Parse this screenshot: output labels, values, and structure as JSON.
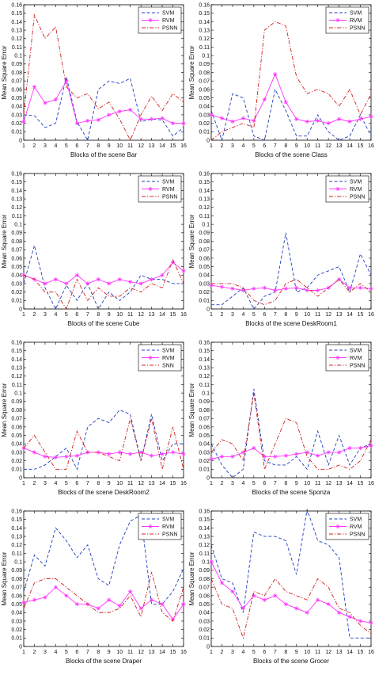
{
  "figure": {
    "panel_order": [
      "bar",
      "class",
      "cube",
      "deskroom1",
      "deskroom2",
      "sponza",
      "draper",
      "grocer"
    ]
  },
  "style": {
    "series_colors": {
      "SVM": "#1f3fbf",
      "RVM": "#ff33ff",
      "PSNN": "#d11f1f",
      "SNN": "#d11f1f"
    },
    "series_dash": {
      "SVM": "dashed",
      "RVM": "solid-with-star-markers",
      "PSNN": "dash-dot",
      "SNN": "dash-dot"
    }
  },
  "chart_data": [
    {
      "id": "bar",
      "type": "line",
      "xlabel": "Blocks of the scene Bar",
      "ylabel": "Mean Square Error",
      "x": [
        1,
        2,
        3,
        4,
        5,
        6,
        7,
        8,
        9,
        10,
        11,
        12,
        13,
        14,
        15,
        16
      ],
      "xlim": [
        1,
        16
      ],
      "ylim": [
        0,
        0.16
      ],
      "yticks": [
        0,
        0.01,
        0.02,
        0.03,
        0.04,
        0.05,
        0.06,
        0.07,
        0.08,
        0.09,
        0.1,
        0.11,
        0.12,
        0.13,
        0.14,
        0.15,
        0.16
      ],
      "legend": "top-right",
      "grid": false,
      "series": [
        {
          "name": "SVM",
          "values": [
            0.03,
            0.029,
            0.015,
            0.02,
            0.075,
            0.022,
            0.0,
            0.06,
            0.07,
            0.067,
            0.073,
            0.022,
            0.025,
            0.024,
            0.005,
            0.015
          ]
        },
        {
          "name": "RVM",
          "values": [
            0.022,
            0.063,
            0.044,
            0.048,
            0.07,
            0.02,
            0.023,
            0.024,
            0.03,
            0.034,
            0.036,
            0.025,
            0.025,
            0.026,
            0.02,
            0.02
          ]
        },
        {
          "name": "PSNN",
          "values": [
            0.03,
            0.148,
            0.12,
            0.134,
            0.063,
            0.05,
            0.055,
            0.037,
            0.045,
            0.025,
            0.0,
            0.03,
            0.052,
            0.035,
            0.055,
            0.045
          ]
        }
      ]
    },
    {
      "id": "class",
      "type": "line",
      "xlabel": "Blocks of the scene Class",
      "ylabel": "Mean Square Error",
      "x": [
        1,
        2,
        3,
        4,
        5,
        6,
        7,
        8,
        9,
        10,
        11,
        12,
        13,
        14,
        15,
        16
      ],
      "xlim": [
        1,
        16
      ],
      "ylim": [
        0,
        0.16
      ],
      "yticks": [
        0,
        0.01,
        0.02,
        0.03,
        0.04,
        0.05,
        0.06,
        0.07,
        0.08,
        0.09,
        0.1,
        0.11,
        0.12,
        0.13,
        0.14,
        0.15,
        0.16
      ],
      "legend": "top-right",
      "grid": false,
      "series": [
        {
          "name": "SVM",
          "values": [
            0.035,
            0.0,
            0.055,
            0.05,
            0.005,
            0.0,
            0.06,
            0.035,
            0.005,
            0.005,
            0.03,
            0.01,
            0.0,
            0.005,
            0.03,
            0.005
          ]
        },
        {
          "name": "RVM",
          "values": [
            0.03,
            0.026,
            0.022,
            0.026,
            0.023,
            0.048,
            0.078,
            0.045,
            0.025,
            0.022,
            0.023,
            0.02,
            0.025,
            0.022,
            0.025,
            0.028
          ]
        },
        {
          "name": "PSNN",
          "values": [
            0.0,
            0.01,
            0.015,
            0.02,
            0.015,
            0.13,
            0.14,
            0.135,
            0.075,
            0.055,
            0.06,
            0.055,
            0.04,
            0.06,
            0.03,
            0.055
          ]
        }
      ]
    },
    {
      "id": "cube",
      "type": "line",
      "xlabel": "Blocks of the scene Cube",
      "ylabel": "Mean Square Error",
      "x": [
        1,
        2,
        3,
        4,
        5,
        6,
        7,
        8,
        9,
        10,
        11,
        12,
        13,
        14,
        15,
        16
      ],
      "xlim": [
        1,
        16
      ],
      "ylim": [
        0,
        0.16
      ],
      "yticks": [
        0,
        0.01,
        0.02,
        0.03,
        0.04,
        0.05,
        0.06,
        0.07,
        0.08,
        0.09,
        0.1,
        0.11,
        0.12,
        0.13,
        0.14,
        0.15,
        0.16
      ],
      "legend": "top-right",
      "grid": false,
      "series": [
        {
          "name": "SVM",
          "values": [
            0.03,
            0.075,
            0.025,
            0.0,
            0.028,
            0.01,
            0.03,
            0.0,
            0.02,
            0.01,
            0.02,
            0.04,
            0.035,
            0.035,
            0.03,
            0.03
          ]
        },
        {
          "name": "RVM",
          "values": [
            0.04,
            0.035,
            0.03,
            0.035,
            0.03,
            0.04,
            0.03,
            0.035,
            0.03,
            0.035,
            0.032,
            0.03,
            0.035,
            0.04,
            0.055,
            0.045
          ]
        },
        {
          "name": "PSNN",
          "values": [
            0.04,
            0.035,
            0.02,
            0.02,
            0.0,
            0.035,
            0.01,
            0.025,
            0.015,
            0.015,
            0.025,
            0.02,
            0.03,
            0.025,
            0.058,
            0.03
          ]
        }
      ]
    },
    {
      "id": "deskroom1",
      "type": "line",
      "xlabel": "Blocks of the scene DeskRoom1",
      "ylabel": "Mean Square Error",
      "x": [
        1,
        2,
        3,
        4,
        5,
        6,
        7,
        8,
        9,
        10,
        11,
        12,
        13,
        14,
        15,
        16
      ],
      "xlim": [
        1,
        16
      ],
      "ylim": [
        0,
        0.16
      ],
      "yticks": [
        0,
        0.01,
        0.02,
        0.03,
        0.04,
        0.05,
        0.06,
        0.07,
        0.08,
        0.09,
        0.1,
        0.11,
        0.12,
        0.13,
        0.14,
        0.15,
        0.16
      ],
      "legend": "top-right",
      "grid": false,
      "series": [
        {
          "name": "SVM",
          "values": [
            0.005,
            0.005,
            0.015,
            0.025,
            0.0,
            0.015,
            0.02,
            0.09,
            0.02,
            0.025,
            0.04,
            0.045,
            0.05,
            0.02,
            0.065,
            0.04
          ]
        },
        {
          "name": "RVM",
          "values": [
            0.028,
            0.026,
            0.024,
            0.022,
            0.024,
            0.025,
            0.022,
            0.024,
            0.025,
            0.022,
            0.022,
            0.025,
            0.035,
            0.025,
            0.025,
            0.024
          ]
        },
        {
          "name": "PSNN",
          "values": [
            0.03,
            0.03,
            0.03,
            0.025,
            0.01,
            0.005,
            0.01,
            0.03,
            0.035,
            0.025,
            0.015,
            0.025,
            0.035,
            0.02,
            0.03,
            0.02
          ]
        }
      ]
    },
    {
      "id": "deskroom2",
      "type": "line",
      "xlabel": "Blocks of the scene DeskRoom2",
      "ylabel": "Mean Square Error",
      "x": [
        1,
        2,
        3,
        4,
        5,
        6,
        7,
        8,
        9,
        10,
        11,
        12,
        13,
        14,
        15,
        16
      ],
      "xlim": [
        1,
        16
      ],
      "ylim": [
        0,
        0.16
      ],
      "yticks": [
        0,
        0.01,
        0.02,
        0.03,
        0.04,
        0.05,
        0.06,
        0.07,
        0.08,
        0.09,
        0.1,
        0.11,
        0.12,
        0.13,
        0.14,
        0.15,
        0.16
      ],
      "legend": "top-right",
      "grid": false,
      "series": [
        {
          "name": "SVM",
          "values": [
            0.01,
            0.01,
            0.015,
            0.025,
            0.035,
            0.01,
            0.06,
            0.07,
            0.065,
            0.08,
            0.075,
            0.02,
            0.075,
            0.02,
            0.04,
            0.04
          ]
        },
        {
          "name": "RVM",
          "values": [
            0.035,
            0.03,
            0.025,
            0.024,
            0.025,
            0.026,
            0.03,
            0.03,
            0.028,
            0.03,
            0.028,
            0.03,
            0.026,
            0.028,
            0.03,
            0.028
          ]
        },
        {
          "name": "SNN",
          "values": [
            0.035,
            0.05,
            0.03,
            0.01,
            0.01,
            0.055,
            0.03,
            0.03,
            0.025,
            0.02,
            0.07,
            0.02,
            0.07,
            0.01,
            0.06,
            0.01
          ]
        }
      ]
    },
    {
      "id": "sponza",
      "type": "line",
      "xlabel": "Blocks of the scene Sponza",
      "ylabel": "Mean Square Error",
      "x": [
        1,
        2,
        3,
        4,
        5,
        6,
        7,
        8,
        9,
        10,
        11,
        12,
        13,
        14,
        15,
        16
      ],
      "xlim": [
        1,
        16
      ],
      "ylim": [
        0,
        0.16
      ],
      "yticks": [
        0,
        0.01,
        0.02,
        0.03,
        0.04,
        0.05,
        0.06,
        0.07,
        0.08,
        0.09,
        0.1,
        0.11,
        0.12,
        0.13,
        0.14,
        0.15,
        0.16
      ],
      "legend": "top-right",
      "grid": false,
      "series": [
        {
          "name": "SVM",
          "values": [
            0.04,
            0.015,
            0.0,
            0.01,
            0.105,
            0.02,
            0.015,
            0.015,
            0.025,
            0.01,
            0.055,
            0.015,
            0.05,
            0.015,
            0.035,
            0.04
          ]
        },
        {
          "name": "RVM",
          "values": [
            0.022,
            0.025,
            0.025,
            0.03,
            0.035,
            0.025,
            0.025,
            0.026,
            0.028,
            0.03,
            0.026,
            0.03,
            0.03,
            0.035,
            0.035,
            0.038
          ]
        },
        {
          "name": "PSNN",
          "values": [
            0.03,
            0.045,
            0.04,
            0.02,
            0.1,
            0.01,
            0.04,
            0.07,
            0.065,
            0.025,
            0.01,
            0.01,
            0.015,
            0.01,
            0.02,
            0.045
          ]
        }
      ]
    },
    {
      "id": "draper",
      "type": "line",
      "xlabel": "Blocks of the scene Draper",
      "ylabel": "Mean Square Error",
      "x": [
        1,
        2,
        3,
        4,
        5,
        6,
        7,
        8,
        9,
        10,
        11,
        12,
        13,
        14,
        15,
        16
      ],
      "xlim": [
        1,
        16
      ],
      "ylim": [
        0,
        0.16
      ],
      "yticks": [
        0,
        0.01,
        0.02,
        0.03,
        0.04,
        0.05,
        0.06,
        0.07,
        0.08,
        0.09,
        0.1,
        0.11,
        0.12,
        0.13,
        0.14,
        0.15,
        0.16
      ],
      "legend": "top-right",
      "grid": false,
      "series": [
        {
          "name": "SVM",
          "values": [
            0.065,
            0.108,
            0.095,
            0.14,
            0.125,
            0.105,
            0.12,
            0.08,
            0.072,
            0.12,
            0.148,
            0.155,
            0.05,
            0.05,
            0.065,
            0.092
          ]
        },
        {
          "name": "RVM",
          "values": [
            0.052,
            0.055,
            0.058,
            0.07,
            0.06,
            0.05,
            0.05,
            0.045,
            0.055,
            0.048,
            0.065,
            0.045,
            0.055,
            0.05,
            0.032,
            0.05
          ]
        },
        {
          "name": "PSNN",
          "values": [
            0.045,
            0.075,
            0.08,
            0.08,
            0.07,
            0.06,
            0.05,
            0.04,
            0.04,
            0.045,
            0.06,
            0.035,
            0.088,
            0.04,
            0.03,
            0.07
          ]
        }
      ]
    },
    {
      "id": "grocer",
      "type": "line",
      "xlabel": "Blocks of the scene Grocer",
      "ylabel": "Mean Square Error",
      "x": [
        1,
        2,
        3,
        4,
        5,
        6,
        7,
        8,
        9,
        10,
        11,
        12,
        13,
        14,
        15,
        16
      ],
      "xlim": [
        1,
        16
      ],
      "ylim": [
        0,
        0.16
      ],
      "yticks": [
        0,
        0.01,
        0.02,
        0.03,
        0.04,
        0.05,
        0.06,
        0.07,
        0.08,
        0.09,
        0.1,
        0.11,
        0.12,
        0.13,
        0.14,
        0.15,
        0.16
      ],
      "legend": "top-right",
      "grid": false,
      "series": [
        {
          "name": "SVM",
          "values": [
            0.12,
            0.08,
            0.075,
            0.04,
            0.135,
            0.13,
            0.13,
            0.125,
            0.085,
            0.162,
            0.125,
            0.12,
            0.105,
            0.01,
            0.01,
            0.01
          ]
        },
        {
          "name": "RVM",
          "values": [
            0.1,
            0.075,
            0.065,
            0.045,
            0.06,
            0.055,
            0.06,
            0.05,
            0.045,
            0.04,
            0.055,
            0.05,
            0.04,
            0.035,
            0.03,
            0.028
          ]
        },
        {
          "name": "PSNN",
          "values": [
            0.08,
            0.05,
            0.045,
            0.01,
            0.065,
            0.06,
            0.08,
            0.065,
            0.06,
            0.055,
            0.08,
            0.07,
            0.045,
            0.04,
            0.025,
            0.015
          ]
        }
      ]
    }
  ]
}
